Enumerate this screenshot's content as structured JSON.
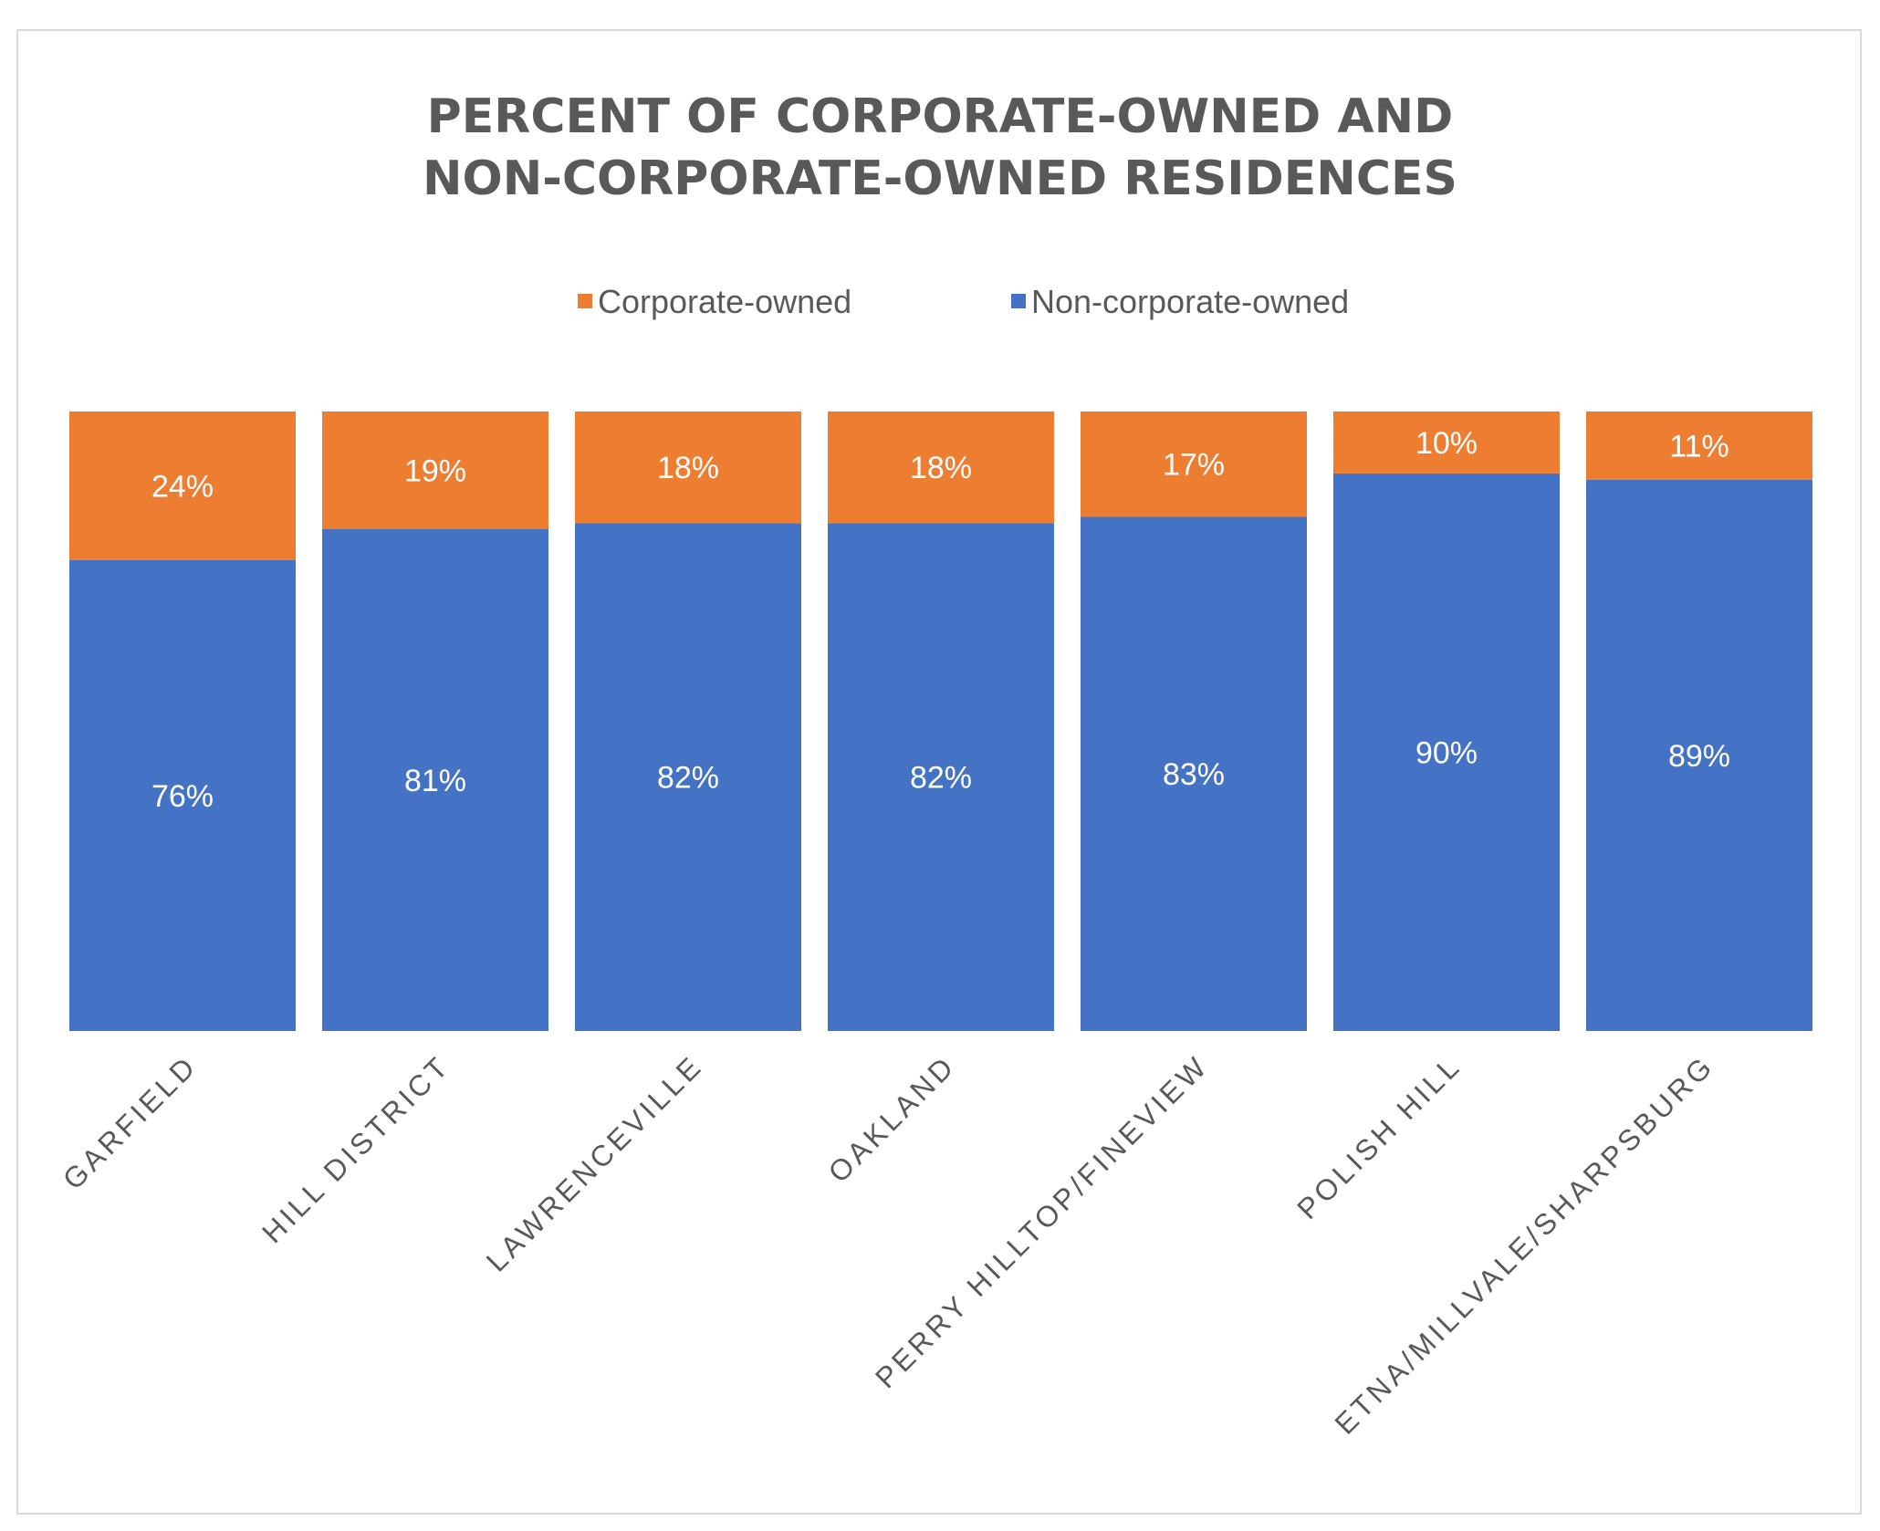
{
  "chart_data": {
    "type": "bar",
    "stacked": true,
    "title_lines": [
      "PERCENT OF CORPORATE-OWNED AND",
      "NON-CORPORATE-OWNED RESIDENCES"
    ],
    "categories": [
      "GARFIELD",
      "HILL DISTRICT",
      "LAWRENCEVILLE",
      "OAKLAND",
      "PERRY HILLTOP/FINEVIEW",
      "POLISH HILL",
      "ETNA/MILLVALE/SHARPSBURG"
    ],
    "series": [
      {
        "name": "Non-corporate-owned",
        "values": [
          76,
          81,
          82,
          82,
          83,
          90,
          89
        ],
        "color": "#4472c4"
      },
      {
        "name": "Corporate-owned",
        "values": [
          24,
          19,
          18,
          18,
          17,
          10,
          11
        ],
        "color": "#ed7d31"
      }
    ],
    "legend_order": [
      "Corporate-owned",
      "Non-corporate-owned"
    ],
    "legend_position": "top",
    "value_format": "{v}%",
    "ylim": [
      0,
      100
    ],
    "grid": false
  }
}
